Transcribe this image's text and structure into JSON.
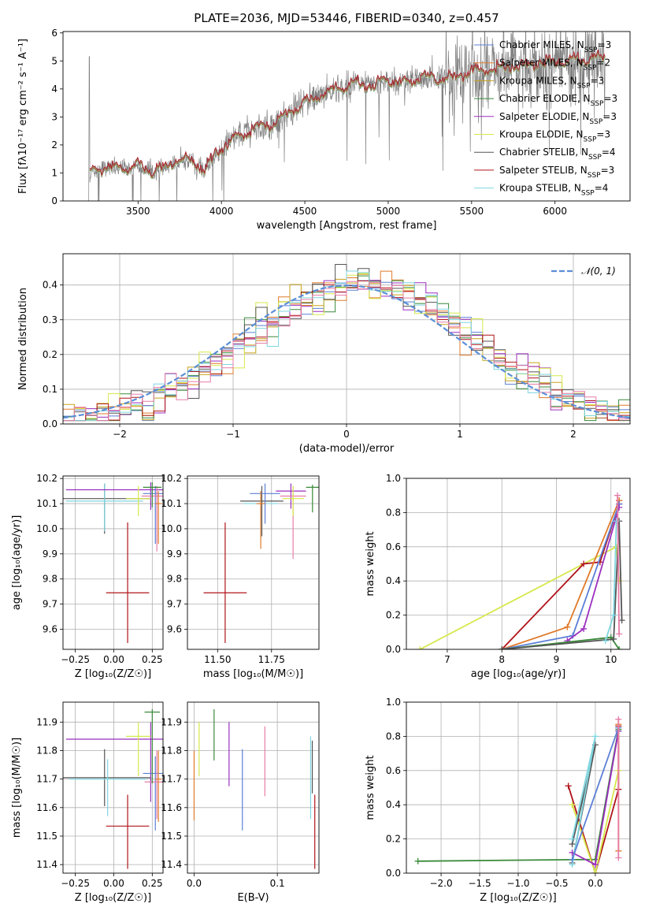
{
  "figure": {
    "title": "PLATE=2036, MJD=53446, FIBERID=0340, z=0.457"
  },
  "colors": {
    "Chabrier MILES": "#5b7fd6",
    "Salpeter MILES": "#e07a2a",
    "Kroupa MILES": "#c7a21a",
    "Chabrier ELODIE": "#3a8a3a",
    "Salpeter ELODIE": "#9b2fbf",
    "Kroupa ELODIE": "#d6e84a",
    "Chabrier STELIB": "#555555",
    "Salpeter STELIB": "#b0141a",
    "Kroupa STELIB": "#7fd6e0",
    "pink": "#e77ca8",
    "data": "#808080",
    "normal": "#5b8fd6"
  },
  "chart_data": [
    {
      "id": "spectrum",
      "type": "line",
      "title": "PLATE=2036, MJD=53446, FIBERID=0340, z=0.457",
      "xlabel": "wavelength [Angstrom, rest frame]",
      "ylabel": "Flux [fλ10⁻¹⁷ erg cm⁻² s⁻¹ A⁻¹]",
      "xlim": [
        3050,
        6450
      ],
      "ylim": [
        0,
        6.05
      ],
      "xticks": [
        3500,
        4000,
        4500,
        5000,
        5500,
        6000
      ],
      "yticks": [
        0,
        1,
        2,
        3,
        4,
        5,
        6
      ],
      "legend_position": "right",
      "legend": [
        {
          "label": "Chabrier MILES, N",
          "sub": "SSP",
          "tail": "=3",
          "color": "Chabrier MILES"
        },
        {
          "label": "Salpeter MILES, N",
          "sub": "SSP",
          "tail": "=2",
          "color": "Salpeter MILES"
        },
        {
          "label": "Kroupa MILES, N",
          "sub": "SSP",
          "tail": "=3",
          "color": "Kroupa MILES"
        },
        {
          "label": "Chabrier ELODIE, N",
          "sub": "SSP",
          "tail": "=3",
          "color": "Chabrier ELODIE"
        },
        {
          "label": "Salpeter ELODIE, N",
          "sub": "SSP",
          "tail": "=3",
          "color": "Salpeter ELODIE"
        },
        {
          "label": "Kroupa ELODIE, N",
          "sub": "SSP",
          "tail": "=3",
          "color": "Kroupa ELODIE"
        },
        {
          "label": "Chabrier STELIB, N",
          "sub": "SSP",
          "tail": "=4",
          "color": "Chabrier STELIB"
        },
        {
          "label": "Salpeter STELIB, N",
          "sub": "SSP",
          "tail": "=3",
          "color": "Salpeter STELIB"
        },
        {
          "label": "Kroupa STELIB, N",
          "sub": "SSP",
          "tail": "=4",
          "color": "Kroupa STELIB"
        }
      ],
      "continuum": {
        "x": [
          3210,
          3300,
          3400,
          3500,
          3600,
          3700,
          3800,
          3900,
          4000,
          4100,
          4200,
          4300,
          4400,
          4500,
          4600,
          4700,
          4800,
          4900,
          5000,
          5100,
          5200,
          5300,
          5400,
          5500,
          5600,
          5700,
          5800,
          5900,
          6000,
          6100,
          6200,
          6300
        ],
        "y": [
          1.0,
          1.2,
          1.15,
          1.2,
          1.05,
          1.3,
          1.5,
          1.1,
          1.9,
          2.3,
          2.6,
          2.7,
          3.1,
          3.5,
          3.8,
          4.0,
          4.2,
          4.1,
          4.3,
          4.2,
          4.4,
          4.3,
          4.4,
          4.6,
          4.7,
          4.75,
          4.8,
          4.9,
          4.95,
          5.0,
          5.05,
          5.1
        ]
      }
    },
    {
      "id": "residuals",
      "type": "line",
      "xlabel": "(data-model)/error",
      "ylabel": "Normed distribution",
      "xlim": [
        -2.5,
        2.5
      ],
      "ylim": [
        0,
        0.49
      ],
      "xticks": [
        -2,
        -1,
        0,
        1,
        2
      ],
      "yticks": [
        0.0,
        0.1,
        0.2,
        0.3,
        0.4
      ],
      "legend": [
        "𝒩(0, 1)"
      ],
      "legend_position": "top-right",
      "bin_width": 0.1
    },
    {
      "id": "age_vs_Z",
      "type": "scatter",
      "xlabel": "Z [log₁₀(Z/Z☉)]",
      "ylabel": "age  [log₁₀(age/yr)]",
      "xlim": [
        -0.33,
        0.32
      ],
      "ylim": [
        9.52,
        10.21
      ],
      "xticks": [
        -0.25,
        0.0,
        0.25
      ],
      "yticks": [
        9.6,
        9.7,
        9.8,
        9.9,
        10.0,
        10.1,
        10.2
      ],
      "points": [
        {
          "x": 0.09,
          "y": 9.745,
          "xerr": 0.14,
          "yerr_lo": 0.2,
          "yerr_hi": 0.28,
          "color": "Salpeter STELIB"
        },
        {
          "x": -0.06,
          "y": 10.12,
          "xerr": 0.3,
          "yerr_lo": 0.14,
          "yerr_hi": 0.06,
          "color": "Chabrier STELIB"
        },
        {
          "x": -0.06,
          "y": 10.11,
          "xerr": 0.25,
          "yerr_lo": 0.12,
          "yerr_hi": 0.07,
          "color": "Kroupa STELIB"
        },
        {
          "x": 0.24,
          "y": 10.155,
          "xerr": 0.55,
          "yerr_lo": 0.08,
          "yerr_hi": 0.03,
          "color": "Salpeter ELODIE"
        },
        {
          "x": 0.27,
          "y": 10.14,
          "xerr": 0.08,
          "yerr_lo": 0.2,
          "yerr_hi": 0.03,
          "color": "Chabrier MILES"
        },
        {
          "x": 0.28,
          "y": 10.13,
          "xerr": 0.1,
          "yerr_lo": 0.22,
          "yerr_hi": 0.04,
          "color": "pink"
        },
        {
          "x": 0.25,
          "y": 10.165,
          "xerr": 0.06,
          "yerr_lo": 0.08,
          "yerr_hi": 0.02,
          "color": "Chabrier ELODIE"
        },
        {
          "x": 0.16,
          "y": 10.12,
          "xerr": 0.08,
          "yerr_lo": 0.07,
          "yerr_hi": 0.05,
          "color": "Kroupa ELODIE"
        },
        {
          "x": 0.29,
          "y": 10.1,
          "xerr": 0.02,
          "yerr_lo": 0.16,
          "yerr_hi": 0.05,
          "color": "Salpeter MILES"
        }
      ]
    },
    {
      "id": "age_vs_mass",
      "type": "scatter",
      "xlabel": "mass [log₁₀(M/M☉)]",
      "ylim": [
        9.52,
        10.21
      ],
      "xlim": [
        11.36,
        11.97
      ],
      "xticks": [
        11.5,
        11.75
      ],
      "xticklabels": [
        "11.50",
        "11.75"
      ],
      "yticks": [
        9.6,
        9.7,
        9.8,
        9.9,
        10.0,
        10.1,
        10.2
      ],
      "points": [
        {
          "x": 11.535,
          "y": 9.745,
          "xerr": 0.1,
          "yerr_lo": 0.2,
          "yerr_hi": 0.28,
          "color": "Salpeter STELIB"
        },
        {
          "x": 11.705,
          "y": 10.11,
          "xerr": 0.1,
          "yerr_lo": 0.14,
          "yerr_hi": 0.06,
          "color": "Chabrier STELIB"
        },
        {
          "x": 11.7,
          "y": 10.1,
          "xerr": 0.08,
          "yerr_lo": 0.14,
          "yerr_hi": 0.05,
          "color": "Kroupa STELIB"
        },
        {
          "x": 11.84,
          "y": 10.15,
          "xerr": 0.07,
          "yerr_lo": 0.07,
          "yerr_hi": 0.03,
          "color": "Salpeter ELODIE"
        },
        {
          "x": 11.72,
          "y": 10.14,
          "xerr": 0.07,
          "yerr_lo": 0.12,
          "yerr_hi": 0.04,
          "color": "Chabrier MILES"
        },
        {
          "x": 11.85,
          "y": 10.13,
          "xerr": 0.06,
          "yerr_lo": 0.25,
          "yerr_hi": 0.04,
          "color": "pink"
        },
        {
          "x": 11.94,
          "y": 10.165,
          "xerr": 0.03,
          "yerr_lo": 0.1,
          "yerr_hi": 0.01,
          "color": "Chabrier ELODIE"
        },
        {
          "x": 11.85,
          "y": 10.12,
          "xerr": 0.05,
          "yerr_lo": 0.07,
          "yerr_hi": 0.05,
          "color": "Kroupa ELODIE"
        },
        {
          "x": 11.7,
          "y": 10.1,
          "xerr": 0.02,
          "yerr_lo": 0.18,
          "yerr_hi": 0.05,
          "color": "Salpeter MILES"
        }
      ]
    },
    {
      "id": "weight_vs_age",
      "type": "line",
      "xlabel": "age  [log₁₀(age/yr)]",
      "ylabel": "mass weight",
      "xlim": [
        6.25,
        10.35
      ],
      "ylim": [
        0,
        1
      ],
      "xticks": [
        7,
        8,
        9,
        10
      ],
      "yticks": [
        0.0,
        0.2,
        0.4,
        0.6,
        0.8,
        1.0
      ],
      "series": [
        {
          "color": "Kroupa ELODIE",
          "x": [
            6.5,
            10.1,
            10.15
          ],
          "y": [
            0.0,
            0.6,
            0.4
          ]
        },
        {
          "color": "Salpeter STELIB",
          "x": [
            8.0,
            9.5,
            9.8,
            10.15,
            10.15
          ],
          "y": [
            0.0,
            0.5,
            0.51,
            0.85,
            0.87
          ]
        },
        {
          "color": "Salpeter MILES",
          "x": [
            8.0,
            9.2,
            10.15
          ],
          "y": [
            0.0,
            0.13,
            0.87
          ]
        },
        {
          "color": "Chabrier MILES",
          "x": [
            8.0,
            9.3,
            10.15
          ],
          "y": [
            0.0,
            0.08,
            0.85
          ]
        },
        {
          "color": "Salpeter ELODIE",
          "x": [
            9.2,
            9.5,
            10.15
          ],
          "y": [
            0.05,
            0.12,
            0.83
          ]
        },
        {
          "color": "Chabrier ELODIE",
          "x": [
            8.0,
            10.0,
            10.15
          ],
          "y": [
            0.0,
            0.07,
            0.0
          ]
        },
        {
          "color": "Chabrier STELIB",
          "x": [
            8.0,
            10.05,
            10.15,
            10.2
          ],
          "y": [
            0.0,
            0.06,
            0.75,
            0.17
          ]
        },
        {
          "color": "Kroupa STELIB",
          "x": [
            9.9,
            10.05,
            10.1
          ],
          "y": [
            0.05,
            0.2,
            0.75
          ]
        },
        {
          "color": "pink",
          "x": [
            10.12,
            10.15
          ],
          "y": [
            0.9,
            0.09
          ]
        }
      ]
    },
    {
      "id": "mass_vs_Z",
      "type": "scatter",
      "xlabel": "Z [log₁₀(Z/Z☉)]",
      "ylabel": "mass [log₁₀(M/M☉)]",
      "xlim": [
        -0.33,
        0.32
      ],
      "ylim": [
        11.37,
        11.97
      ],
      "xticks": [
        -0.25,
        0.0,
        0.25
      ],
      "yticks": [
        11.4,
        11.5,
        11.6,
        11.7,
        11.8,
        11.9
      ],
      "points": [
        {
          "x": 0.09,
          "y": 11.535,
          "xerr": 0.14,
          "yerr_lo": 0.15,
          "yerr_hi": 0.11,
          "color": "Salpeter STELIB"
        },
        {
          "x": -0.06,
          "y": 11.705,
          "xerr": 0.3,
          "yerr_lo": 0.1,
          "yerr_hi": 0.1,
          "color": "Chabrier STELIB"
        },
        {
          "x": -0.04,
          "y": 11.7,
          "xerr": 0.25,
          "yerr_lo": 0.13,
          "yerr_hi": 0.07,
          "color": "Kroupa STELIB"
        },
        {
          "x": 0.24,
          "y": 11.84,
          "xerr": 0.55,
          "yerr_lo": 0.22,
          "yerr_hi": 0.06,
          "color": "Salpeter ELODIE"
        },
        {
          "x": 0.27,
          "y": 11.72,
          "xerr": 0.08,
          "yerr_lo": 0.2,
          "yerr_hi": 0.06,
          "color": "Chabrier MILES"
        },
        {
          "x": 0.28,
          "y": 11.69,
          "xerr": 0.08,
          "yerr_lo": 0.13,
          "yerr_hi": 0.11,
          "color": "pink"
        },
        {
          "x": 0.25,
          "y": 11.935,
          "xerr": 0.05,
          "yerr_lo": 0.25,
          "yerr_hi": 0.01,
          "color": "Chabrier ELODIE"
        },
        {
          "x": 0.16,
          "y": 11.85,
          "xerr": 0.08,
          "yerr_lo": 0.14,
          "yerr_hi": 0.05,
          "color": "Kroupa ELODIE"
        },
        {
          "x": 0.29,
          "y": 11.7,
          "xerr": 0.02,
          "yerr_lo": 0.15,
          "yerr_hi": 0.1,
          "color": "Salpeter MILES"
        }
      ]
    },
    {
      "id": "mass_vs_EBV",
      "type": "scatter",
      "xlabel": "E(B-V)",
      "xlim": [
        -0.008,
        0.15
      ],
      "ylim": [
        11.37,
        11.97
      ],
      "xticks": [
        0.0,
        0.1
      ],
      "xticklabels": [
        "0.0",
        "0.1"
      ],
      "yticks": [
        11.4,
        11.5,
        11.6,
        11.7,
        11.8,
        11.9
      ],
      "points": [
        {
          "x": 0.0,
          "lo": 11.555,
          "hi": 11.8,
          "color": "Salpeter MILES"
        },
        {
          "x": 0.006,
          "lo": 11.71,
          "hi": 11.9,
          "color": "Kroupa ELODIE"
        },
        {
          "x": 0.024,
          "lo": 11.765,
          "hi": 11.945,
          "color": "Chabrier ELODIE"
        },
        {
          "x": 0.042,
          "lo": 11.675,
          "hi": 11.9,
          "color": "Salpeter ELODIE"
        },
        {
          "x": 0.058,
          "lo": 11.52,
          "hi": 11.805,
          "color": "Chabrier MILES"
        },
        {
          "x": 0.085,
          "lo": 11.64,
          "hi": 11.885,
          "color": "pink"
        },
        {
          "x": 0.14,
          "lo": 11.56,
          "hi": 11.85,
          "color": "Kroupa STELIB"
        },
        {
          "x": 0.142,
          "lo": 11.65,
          "hi": 11.835,
          "color": "Chabrier STELIB"
        },
        {
          "x": 0.145,
          "lo": 11.385,
          "hi": 11.645,
          "color": "Salpeter STELIB"
        }
      ]
    },
    {
      "id": "weight_vs_Z",
      "type": "line",
      "xlabel": "Z [log₁₀(Z/Z☉)]",
      "ylabel": "mass weight",
      "xlim": [
        -2.45,
        0.45
      ],
      "ylim": [
        0,
        1
      ],
      "xticks": [
        -2.0,
        -1.5,
        -1.0,
        -0.5,
        0.0
      ],
      "xticklabels": [
        "−2.0",
        "−1.5",
        "−1.0",
        "−0.5",
        "0.0"
      ],
      "yticks": [
        0.0,
        0.2,
        0.4,
        0.6,
        0.8,
        1.0
      ],
      "series": [
        {
          "color": "Chabrier ELODIE",
          "x": [
            -2.3,
            0.0,
            0.3
          ],
          "y": [
            0.07,
            0.08,
            0.84
          ]
        },
        {
          "color": "Salpeter STELIB",
          "x": [
            -0.35,
            0.0,
            0.3,
            0.3
          ],
          "y": [
            0.51,
            0.0,
            0.49,
            0.86
          ]
        },
        {
          "color": "Kroupa ELODIE",
          "x": [
            -0.3,
            0.0,
            0.3
          ],
          "y": [
            0.4,
            0.0,
            0.6
          ]
        },
        {
          "color": "Salpeter ELODIE",
          "x": [
            -0.3,
            0.0,
            0.3
          ],
          "y": [
            0.12,
            0.05,
            0.83
          ]
        },
        {
          "color": "Chabrier STELIB",
          "x": [
            -0.3,
            0.0,
            -0.3
          ],
          "y": [
            0.17,
            0.75,
            0.06
          ]
        },
        {
          "color": "Kroupa STELIB",
          "x": [
            -0.3,
            0.0,
            -0.3
          ],
          "y": [
            0.2,
            0.8,
            0.05
          ]
        },
        {
          "color": "Chabrier MILES",
          "x": [
            -0.3,
            0.3
          ],
          "y": [
            0.08,
            0.85
          ]
        },
        {
          "color": "Salpeter MILES",
          "x": [
            0.3,
            0.3
          ],
          "y": [
            0.13,
            0.87
          ]
        },
        {
          "color": "pink",
          "x": [
            0.3,
            0.3
          ],
          "y": [
            0.09,
            0.9
          ]
        }
      ]
    }
  ]
}
